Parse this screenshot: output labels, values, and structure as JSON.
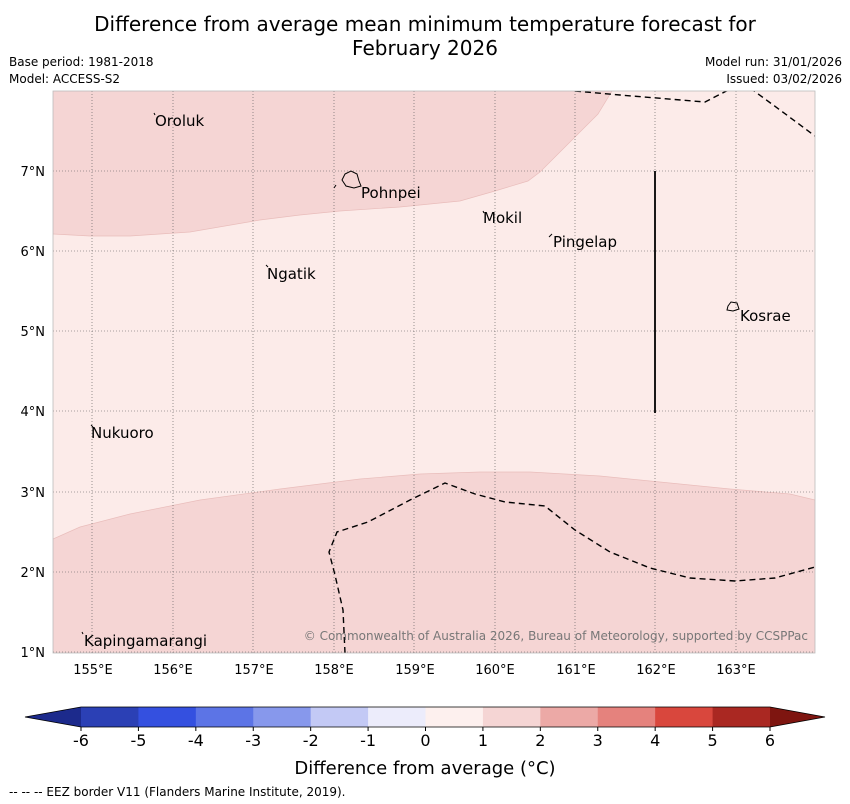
{
  "title_line1": "Difference from average mean minimum temperature forecast for",
  "title_line2": "February 2026",
  "meta_left": [
    "Base period: 1981-2018",
    "Model: ACCESS-S2"
  ],
  "meta_right": [
    "Model run: 31/01/2026",
    "Issued: 03/02/2026"
  ],
  "places": [
    {
      "name": "Oroluk",
      "lon": 155.75,
      "lat": 7.6
    },
    {
      "name": "Pohnpei",
      "lon": 158.33,
      "lat": 6.85
    },
    {
      "name": "Mokil",
      "lon": 159.87,
      "lat": 6.42
    },
    {
      "name": "Pingelap",
      "lon": 160.72,
      "lat": 6.17
    },
    {
      "name": "Ngatik",
      "lon": 157.2,
      "lat": 5.78
    },
    {
      "name": "Kosrae",
      "lon": 162.96,
      "lat": 5.28
    },
    {
      "name": "Nukuoro",
      "lon": 154.94,
      "lat": 3.82
    },
    {
      "name": "Kapingamarangi",
      "lon": 154.8,
      "lat": 1.22
    }
  ],
  "lat_ticks": [
    "7°N",
    "6°N",
    "5°N",
    "4°N",
    "3°N",
    "2°N",
    "1°N"
  ],
  "lon_ticks": [
    "155°E",
    "156°E",
    "157°E",
    "158°E",
    "159°E",
    "160°E",
    "161°E",
    "162°E",
    "163°E"
  ],
  "copyright": "© Commonwealth of Australia 2026, Bureau of Meteorology, supported by CCSPPac",
  "colorbar": {
    "title": "Difference from average (°C)",
    "ticks": [
      "-6",
      "-5",
      "-4",
      "-3",
      "-2",
      "-1",
      "0",
      "1",
      "2",
      "3",
      "4",
      "5",
      "6"
    ],
    "colors": [
      "#1c2a8c",
      "#2b40b5",
      "#3450e0",
      "#5c74e6",
      "#8798ec",
      "#c3c9f5",
      "#ececfb",
      "#fdf0ee",
      "#f5d5d4",
      "#eca9a6",
      "#e5827d",
      "#d9473d",
      "#aa2822",
      "#7e1510"
    ]
  },
  "footer": "--  --  -- EEZ border V11 (Flanders Marine Institute, 2019).",
  "map_fill": {
    "band_1_2": "#fcebe9",
    "band_2_3": "#f5d5d4"
  }
}
